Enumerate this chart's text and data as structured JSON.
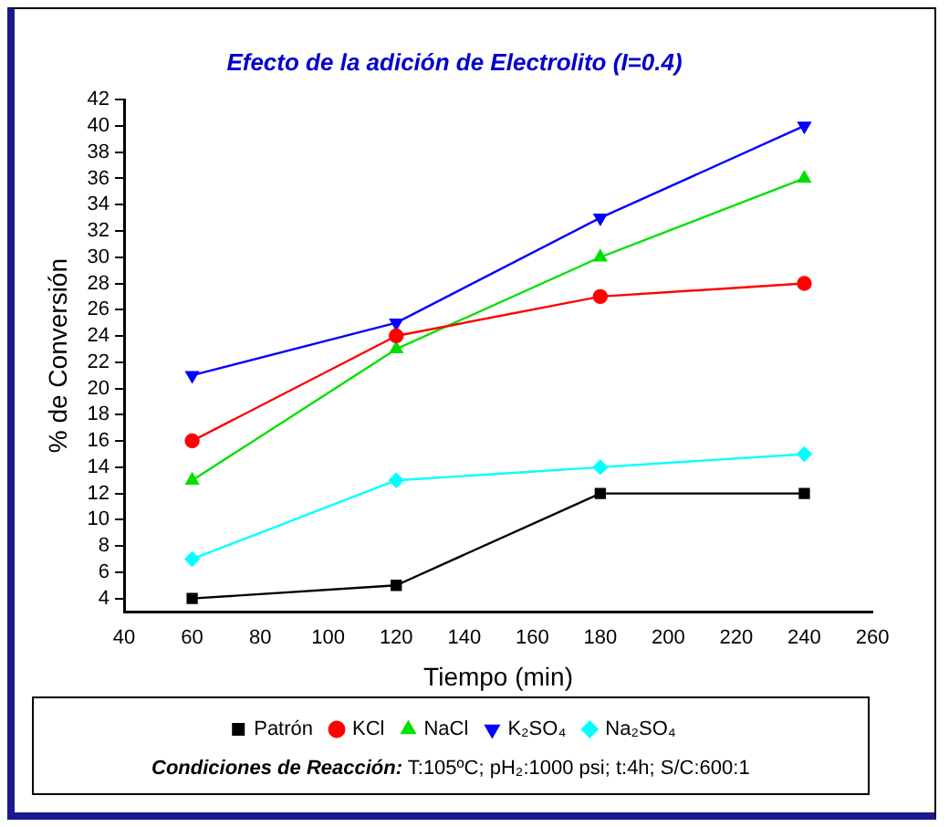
{
  "chart_data": {
    "type": "line",
    "title": "Efecto de la adición de Electrolito (I=0.4)",
    "xlabel": "Tiempo (min)",
    "ylabel": "% de Conversión",
    "x": [
      60,
      120,
      180,
      240
    ],
    "series": [
      {
        "name": "Patrón",
        "color": "#000000",
        "marker": "square",
        "values": [
          4,
          5,
          12,
          12
        ]
      },
      {
        "name": "KCl",
        "color": "#ff0000",
        "marker": "circle",
        "values": [
          16,
          24,
          27,
          28
        ]
      },
      {
        "name": "NaCl",
        "color": "#00e000",
        "marker": "triangle",
        "values": [
          13,
          23,
          30,
          36
        ]
      },
      {
        "name": "K₂SO₄",
        "color": "#0000ff",
        "marker": "triangle-down",
        "values": [
          21,
          25,
          33,
          40
        ]
      },
      {
        "name": "Na₂SO₄",
        "color": "#00ffff",
        "marker": "diamond",
        "values": [
          7,
          13,
          14,
          15
        ]
      }
    ],
    "xlim": [
      40,
      260
    ],
    "xticks": [
      40,
      60,
      80,
      100,
      120,
      140,
      160,
      180,
      200,
      220,
      240,
      260
    ],
    "ylim": [
      3,
      42
    ],
    "yticks": [
      4,
      6,
      8,
      10,
      12,
      14,
      16,
      18,
      20,
      22,
      24,
      26,
      28,
      30,
      32,
      34,
      36,
      38,
      40,
      42
    ],
    "grid": false,
    "legend": "bottom",
    "annotations": [
      "Condiciones de Reacción: T:105ºC; pH₂:1000 psi; t:4h; S/C:600:1"
    ]
  }
}
